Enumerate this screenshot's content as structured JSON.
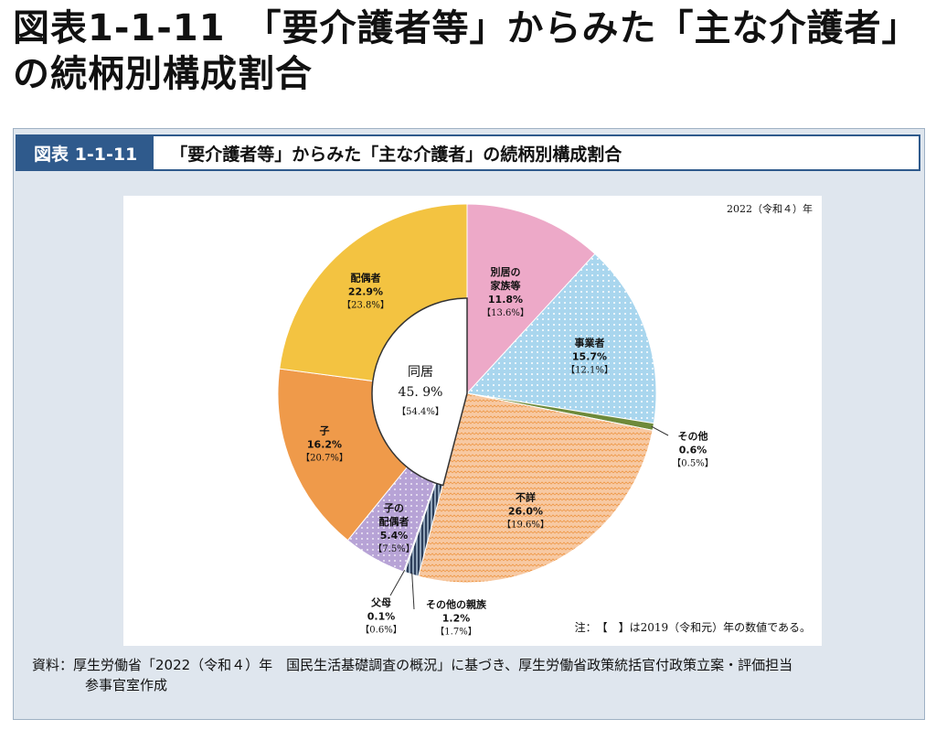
{
  "page": {
    "title": "図表1-1-11　「要介護者等」からみた「主な介護者」の続柄別構成割合"
  },
  "figure": {
    "badge": "図表 1-1-11",
    "caption": "「要介護者等」からみた「主な介護者」の続柄別構成割合",
    "year_note": "2022（令和４）年",
    "note": "注：　【　】は2019（令和元）年の数値である。",
    "source_line1": "資料：厚生労働省「2022（令和４）年　国民生活基礎調査の概況」に基づき、厚生労働省政策統括官付政策立案・評価担当",
    "source_line2": "参事官室作成"
  },
  "colors": {
    "accent": "#2f5a8c",
    "panel_bg": "#dfe6ee",
    "family_separate": "#eda9c8",
    "business": "#a9d6ee",
    "other": "#6e8a3a",
    "unknown": "#f7c9a3",
    "other_relative": "#2c3e5a",
    "parent": "#c9c9c9",
    "child_spouse": "#b7a3d6",
    "child": "#ef9a4a",
    "spouse": "#f3c341",
    "cohabit": "#ffffff"
  },
  "chart_data": {
    "type": "pie",
    "title": "「要介護者等」からみた「主な介護者」の続柄別構成割合",
    "unit": "%",
    "series_2022": [
      {
        "label": "別居の家族等",
        "value": 11.8,
        "prev": 13.6
      },
      {
        "label": "事業者",
        "value": 15.7,
        "prev": 12.1
      },
      {
        "label": "その他",
        "value": 0.6,
        "prev": 0.5
      },
      {
        "label": "不詳",
        "value": 26.0,
        "prev": 19.6
      },
      {
        "label": "その他の親族",
        "value": 1.2,
        "prev": 1.7
      },
      {
        "label": "父母",
        "value": 0.1,
        "prev": 0.6
      },
      {
        "label": "子の配偶者",
        "value": 5.4,
        "prev": 7.5
      },
      {
        "label": "子",
        "value": 16.2,
        "prev": 20.7
      },
      {
        "label": "配偶者",
        "value": 22.9,
        "prev": 23.8
      }
    ],
    "cohabiting_total": {
      "label": "同居",
      "value": 45.9,
      "prev": 54.4
    },
    "labels": {
      "family_separate": {
        "line1": "別居の",
        "line2": "家族等",
        "value": "11.8%",
        "prev": "【13.6%】"
      },
      "business": {
        "line1": "事業者",
        "value": "15.7%",
        "prev": "【12.1%】"
      },
      "other": {
        "line1": "その他",
        "value": "0.6%",
        "prev": "【0.5%】"
      },
      "unknown": {
        "line1": "不詳",
        "value": "26.0%",
        "prev": "【19.6%】"
      },
      "other_relative": {
        "line1": "その他の親族",
        "value": "1.2%",
        "prev": "【1.7%】"
      },
      "parent": {
        "line1": "父母",
        "value": "0.1%",
        "prev": "【0.6%】"
      },
      "child_spouse": {
        "line1": "子の",
        "line2": "配偶者",
        "value": "5.4%",
        "prev": "【7.5%】"
      },
      "child": {
        "line1": "子",
        "value": "16.2%",
        "prev": "【20.7%】"
      },
      "spouse": {
        "line1": "配偶者",
        "value": "22.9%",
        "prev": "【23.8%】"
      },
      "cohabit": {
        "line1": "同居",
        "value": "45. 9%",
        "prev": "【54.4%】"
      }
    }
  }
}
